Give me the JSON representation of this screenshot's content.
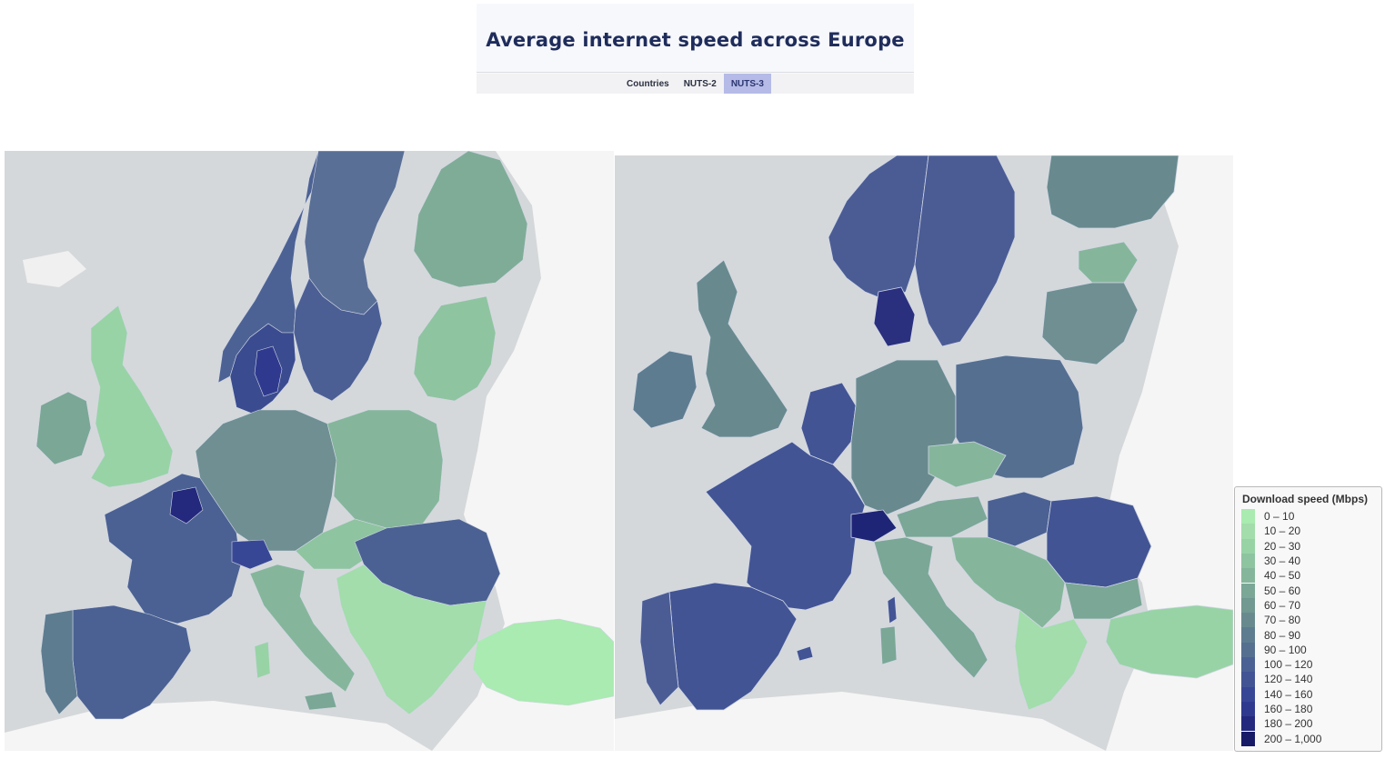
{
  "header": {
    "title": "Average internet speed across Europe",
    "tabs": [
      {
        "label": "Countries",
        "active": false
      },
      {
        "label": "NUTS-2",
        "active": false
      },
      {
        "label": "NUTS-3",
        "active": true
      }
    ]
  },
  "colors": {
    "sea": "#d5d8da",
    "non_data_land": "#f5f5f5",
    "header_bg": "#f7f8fc",
    "title": "#1f2d5c",
    "active_tab": "#b5bbe6"
  },
  "legend": {
    "title": "Download speed (Mbps)",
    "items": [
      {
        "label": "0 – 10",
        "color": "#a9ebb0"
      },
      {
        "label": "10 – 20",
        "color": "#a2ddab"
      },
      {
        "label": "20 – 30",
        "color": "#98d3a6"
      },
      {
        "label": "30 – 40",
        "color": "#8fc4a0"
      },
      {
        "label": "40 – 50",
        "color": "#85b69b"
      },
      {
        "label": "50 – 60",
        "color": "#7ba796"
      },
      {
        "label": "60 – 70",
        "color": "#719891"
      },
      {
        "label": "70 – 80",
        "color": "#688a8f"
      },
      {
        "label": "80 – 90",
        "color": "#5e7c90"
      },
      {
        "label": "90 – 100",
        "color": "#556f91"
      },
      {
        "label": "100 – 120",
        "color": "#4b6193"
      },
      {
        "label": "120 – 140",
        "color": "#425494"
      },
      {
        "label": "140 – 160",
        "color": "#384795"
      },
      {
        "label": "160 – 180",
        "color": "#2f3a8f"
      },
      {
        "label": "180 – 200",
        "color": "#24297e"
      },
      {
        "label": "200 – 1,000",
        "color": "#171a67"
      }
    ]
  },
  "maps": [
    {
      "name": "nuts-3-map",
      "level": "NUTS-3"
    },
    {
      "name": "countries-map",
      "level": "Countries"
    }
  ]
}
